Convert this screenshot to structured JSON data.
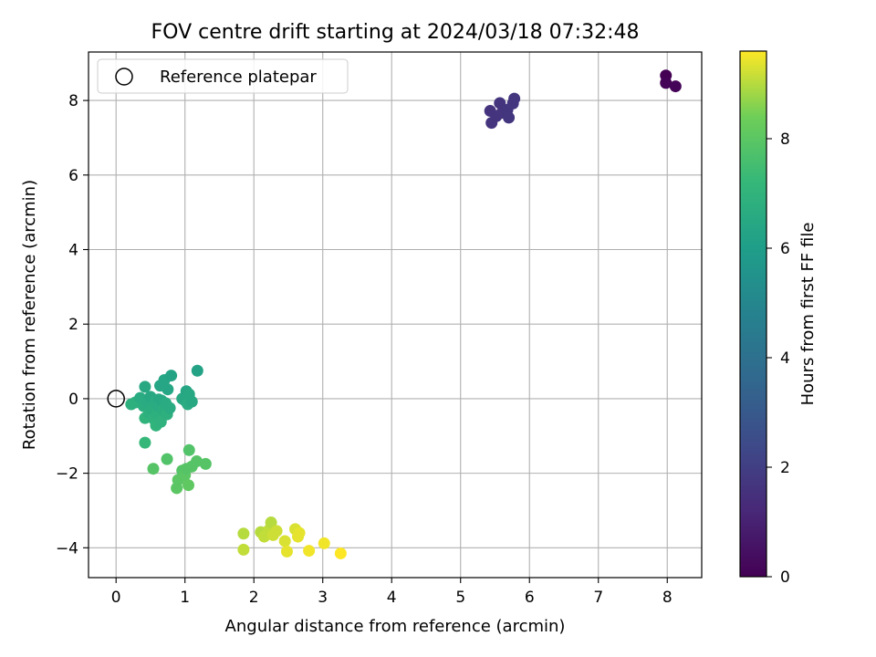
{
  "chart_data": {
    "type": "scatter",
    "title": "FOV centre drift starting at 2024/03/18 07:32:48",
    "xlabel": "Angular distance from reference (arcmin)",
    "ylabel": "Rotation from reference (arcmin)",
    "xlim": [
      -0.4,
      8.5
    ],
    "ylim": [
      -4.8,
      9.3
    ],
    "xticks": [
      0,
      1,
      2,
      3,
      4,
      5,
      6,
      7,
      8
    ],
    "yticks": [
      -4,
      -2,
      0,
      2,
      4,
      6,
      8
    ],
    "grid": true,
    "legend": {
      "placement": "top-left",
      "entries": [
        "Reference platepar"
      ]
    },
    "colorbar": {
      "label": "Hours from first FF file",
      "colormap": "viridis",
      "range": [
        0,
        9.6
      ],
      "ticks": [
        0,
        2,
        4,
        6,
        8
      ]
    },
    "reference_point": {
      "name": "Reference platepar",
      "x": 0,
      "y": 0
    },
    "points": [
      {
        "x": 7.98,
        "y": 8.67,
        "h": 0.0
      },
      {
        "x": 7.98,
        "y": 8.47,
        "h": 0.05
      },
      {
        "x": 8.12,
        "y": 8.38,
        "h": 0.1
      },
      {
        "x": 5.43,
        "y": 7.72,
        "h": 1.6
      },
      {
        "x": 5.45,
        "y": 7.4,
        "h": 1.62
      },
      {
        "x": 5.52,
        "y": 7.58,
        "h": 1.63
      },
      {
        "x": 5.57,
        "y": 7.93,
        "h": 1.64
      },
      {
        "x": 5.6,
        "y": 7.67,
        "h": 1.65
      },
      {
        "x": 5.68,
        "y": 7.75,
        "h": 1.66
      },
      {
        "x": 5.7,
        "y": 7.54,
        "h": 1.67
      },
      {
        "x": 5.76,
        "y": 7.92,
        "h": 1.68
      },
      {
        "x": 5.78,
        "y": 8.05,
        "h": 1.7
      },
      {
        "x": 0.22,
        "y": -0.15,
        "h": 6.8
      },
      {
        "x": 0.28,
        "y": -0.1,
        "h": 6.8
      },
      {
        "x": 0.35,
        "y": 0.02,
        "h": 6.6
      },
      {
        "x": 0.4,
        "y": -0.2,
        "h": 6.7
      },
      {
        "x": 0.42,
        "y": 0.32,
        "h": 6.5
      },
      {
        "x": 0.42,
        "y": -0.52,
        "h": 7.0
      },
      {
        "x": 0.45,
        "y": -0.12,
        "h": 6.6
      },
      {
        "x": 0.48,
        "y": -0.38,
        "h": 6.8
      },
      {
        "x": 0.5,
        "y": 0.05,
        "h": 6.5
      },
      {
        "x": 0.52,
        "y": -0.28,
        "h": 6.7
      },
      {
        "x": 0.55,
        "y": -0.55,
        "h": 6.9
      },
      {
        "x": 0.57,
        "y": -0.08,
        "h": 6.6
      },
      {
        "x": 0.58,
        "y": -0.72,
        "h": 7.0
      },
      {
        "x": 0.6,
        "y": -0.4,
        "h": 6.8
      },
      {
        "x": 0.62,
        "y": -0.02,
        "h": 6.5
      },
      {
        "x": 0.62,
        "y": -0.2,
        "h": 6.6
      },
      {
        "x": 0.64,
        "y": 0.35,
        "h": 6.4
      },
      {
        "x": 0.65,
        "y": -0.62,
        "h": 6.9
      },
      {
        "x": 0.66,
        "y": -0.05,
        "h": 6.5
      },
      {
        "x": 0.68,
        "y": -0.3,
        "h": 6.7
      },
      {
        "x": 0.7,
        "y": 0.5,
        "h": 6.4
      },
      {
        "x": 0.72,
        "y": -0.12,
        "h": 6.6
      },
      {
        "x": 0.74,
        "y": -0.42,
        "h": 6.8
      },
      {
        "x": 0.75,
        "y": 0.25,
        "h": 6.4
      },
      {
        "x": 0.78,
        "y": -0.25,
        "h": 6.6
      },
      {
        "x": 0.8,
        "y": 0.62,
        "h": 6.3
      },
      {
        "x": 0.96,
        "y": 0.0,
        "h": 6.5
      },
      {
        "x": 1.0,
        "y": -0.05,
        "h": 6.5
      },
      {
        "x": 1.02,
        "y": 0.2,
        "h": 6.4
      },
      {
        "x": 1.04,
        "y": -0.15,
        "h": 6.6
      },
      {
        "x": 1.06,
        "y": 0.12,
        "h": 6.5
      },
      {
        "x": 1.1,
        "y": -0.08,
        "h": 6.5
      },
      {
        "x": 1.18,
        "y": 0.75,
        "h": 6.2
      },
      {
        "x": 0.42,
        "y": -1.18,
        "h": 7.2
      },
      {
        "x": 0.54,
        "y": -1.88,
        "h": 7.9
      },
      {
        "x": 0.74,
        "y": -1.62,
        "h": 7.8
      },
      {
        "x": 0.88,
        "y": -2.4,
        "h": 8.0
      },
      {
        "x": 0.9,
        "y": -2.18,
        "h": 8.0
      },
      {
        "x": 0.96,
        "y": -1.93,
        "h": 7.9
      },
      {
        "x": 1.0,
        "y": -2.05,
        "h": 8.0
      },
      {
        "x": 1.02,
        "y": -1.88,
        "h": 7.9
      },
      {
        "x": 1.05,
        "y": -2.32,
        "h": 8.1
      },
      {
        "x": 1.06,
        "y": -1.38,
        "h": 7.8
      },
      {
        "x": 1.1,
        "y": -1.82,
        "h": 7.9
      },
      {
        "x": 1.17,
        "y": -1.68,
        "h": 7.9
      },
      {
        "x": 1.3,
        "y": -1.75,
        "h": 7.9
      },
      {
        "x": 1.85,
        "y": -3.62,
        "h": 9.0
      },
      {
        "x": 1.85,
        "y": -4.05,
        "h": 9.1
      },
      {
        "x": 2.1,
        "y": -3.58,
        "h": 9.0
      },
      {
        "x": 2.15,
        "y": -3.7,
        "h": 9.1
      },
      {
        "x": 2.22,
        "y": -3.52,
        "h": 9.1
      },
      {
        "x": 2.25,
        "y": -3.32,
        "h": 9.0
      },
      {
        "x": 2.28,
        "y": -3.66,
        "h": 9.2
      },
      {
        "x": 2.33,
        "y": -3.55,
        "h": 9.2
      },
      {
        "x": 2.45,
        "y": -3.82,
        "h": 9.3
      },
      {
        "x": 2.48,
        "y": -4.1,
        "h": 9.4
      },
      {
        "x": 2.6,
        "y": -3.5,
        "h": 9.3
      },
      {
        "x": 2.64,
        "y": -3.7,
        "h": 9.4
      },
      {
        "x": 2.66,
        "y": -3.6,
        "h": 9.4
      },
      {
        "x": 2.8,
        "y": -4.08,
        "h": 9.5
      },
      {
        "x": 3.02,
        "y": -3.88,
        "h": 9.5
      },
      {
        "x": 3.26,
        "y": -4.15,
        "h": 9.6
      }
    ]
  }
}
